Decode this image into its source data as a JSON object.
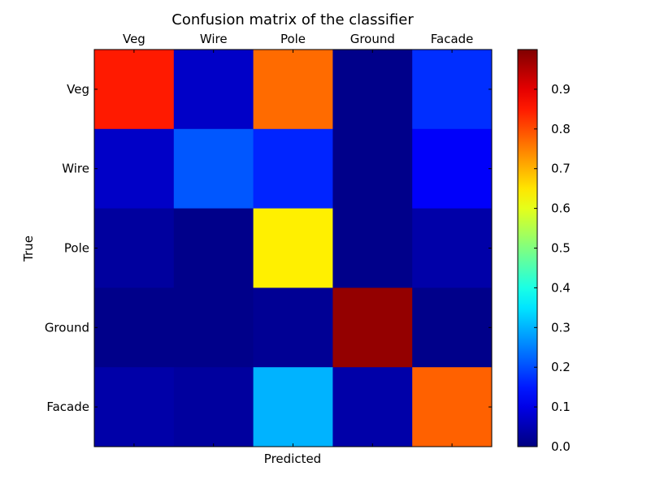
{
  "chart_data": {
    "type": "heatmap",
    "title": "Confusion matrix of the classifier",
    "xlabel": "Predicted",
    "ylabel": "True",
    "x_categories": [
      "Veg",
      "Wire",
      "Pole",
      "Ground",
      "Facade"
    ],
    "y_categories": [
      "Veg",
      "Wire",
      "Pole",
      "Ground",
      "Facade"
    ],
    "values": [
      [
        0.85,
        0.07,
        0.77,
        0.01,
        0.17
      ],
      [
        0.07,
        0.21,
        0.16,
        0.01,
        0.12
      ],
      [
        0.03,
        0.01,
        0.64,
        0.01,
        0.04
      ],
      [
        0.01,
        0.01,
        0.02,
        0.98,
        0.01
      ],
      [
        0.04,
        0.03,
        0.3,
        0.04,
        0.78
      ]
    ],
    "colormap": "jet",
    "colorbar": {
      "min": 0.0,
      "max": 1.0,
      "ticks": [
        0.0,
        0.1,
        0.2,
        0.3,
        0.4,
        0.5,
        0.6,
        0.7,
        0.8,
        0.9
      ],
      "tick_labels": [
        "0.0",
        "0.1",
        "0.2",
        "0.3",
        "0.4",
        "0.5",
        "0.6",
        "0.7",
        "0.8",
        "0.9"
      ]
    },
    "x_tick_position": "top",
    "grid": false
  }
}
